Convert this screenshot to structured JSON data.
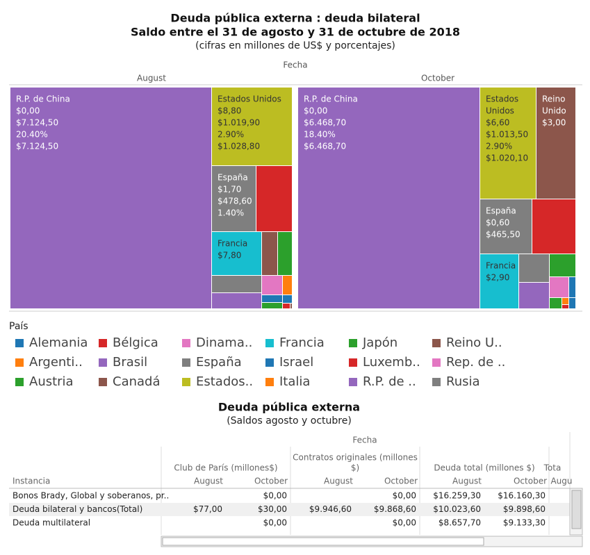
{
  "header": {
    "title": "Deuda pública externa : deuda bilateral",
    "title2": "Saldo entre el 31 de agosto y 31 de octubre de 2018",
    "subtitle": "(cifras en millones de US$ y porcentajes)"
  },
  "treemap": {
    "column_header": "Fecha",
    "panels": [
      {
        "label": "August",
        "tiles": [
          {
            "lines": [
              "R.P. de China",
              "$0,00",
              "$7.124,50",
              "20.40%",
              "$7.124,50"
            ]
          },
          {
            "lines": [
              "Estados Unidos",
              "$8,80",
              "$1.019,90",
              "2.90%",
              "$1.028,80"
            ]
          },
          {
            "lines": [
              "España",
              "$1,70",
              "$478,60",
              "1.40%"
            ]
          },
          {
            "lines": [
              "Francia",
              "$7,80"
            ]
          }
        ]
      },
      {
        "label": "October",
        "tiles": [
          {
            "lines": [
              "R.P. de China",
              "$0,00",
              "$6.468,70",
              "18.40%",
              "$6.468,70"
            ]
          },
          {
            "lines": [
              "Estados",
              "Unidos",
              "$6,60",
              "$1.013,50",
              "2.90%",
              "$1.020,10"
            ]
          },
          {
            "lines": [
              "Reino",
              "Unido",
              "$3,00"
            ]
          },
          {
            "lines": [
              "España",
              "$0,60",
              "$465,50"
            ]
          },
          {
            "lines": [
              "Francia",
              "$2,90"
            ]
          }
        ]
      }
    ]
  },
  "legend": {
    "title": "País",
    "items": [
      {
        "label": "Alemania",
        "color": "#1f77b4"
      },
      {
        "label": "Bélgica",
        "color": "#d62728"
      },
      {
        "label": "Dinama..",
        "color": "#e377c2"
      },
      {
        "label": "Francia",
        "color": "#17becf"
      },
      {
        "label": "Japón",
        "color": "#2ca02c"
      },
      {
        "label": "Reino U..",
        "color": "#8c564b"
      },
      {
        "label": "Argenti..",
        "color": "#ff7f0e"
      },
      {
        "label": "Brasil",
        "color": "#9467bd"
      },
      {
        "label": "España",
        "color": "#7f7f7f"
      },
      {
        "label": "Israel",
        "color": "#1f77b4"
      },
      {
        "label": "Luxemb..",
        "color": "#d62728"
      },
      {
        "label": "Rep. de ..",
        "color": "#e377c2"
      },
      {
        "label": "Austria",
        "color": "#2ca02c"
      },
      {
        "label": "Canadá",
        "color": "#8c564b"
      },
      {
        "label": "Estados..",
        "color": "#bcbd22"
      },
      {
        "label": "Italia",
        "color": "#ff7f0e"
      },
      {
        "label": "R.P. de ..",
        "color": "#9467bd"
      },
      {
        "label": "Rusia",
        "color": "#7f7f7f"
      }
    ]
  },
  "table": {
    "title": "Deuda pública externa",
    "subtitle": "(Saldos agosto y octubre)",
    "column_header": "Fecha",
    "row_header": "Instancia",
    "groups": [
      {
        "label_lines": [
          "Club de París (millones$)"
        ],
        "columns": [
          "August",
          "October"
        ]
      },
      {
        "label_lines": [
          "Contratos originales (millones",
          "$)"
        ],
        "columns": [
          "August",
          "October"
        ]
      },
      {
        "label_lines": [
          "Deuda total (millones $)"
        ],
        "columns": [
          "August",
          "October"
        ]
      },
      {
        "label_lines": [
          "Tota"
        ],
        "columns": [
          "Augu"
        ]
      }
    ],
    "rows": [
      {
        "label": "Bonos Brady, Global y soberanos, pr..",
        "cells": [
          null,
          "$0,00",
          null,
          "$0,00",
          "$16.259,30",
          "$16.160,30"
        ]
      },
      {
        "label": "Deuda bilateral y bancos(Total)",
        "cells": [
          "$77,00",
          "$30,00",
          "$9.946,60",
          "$9.868,60",
          "$10.023,60",
          "$9.898,60"
        ]
      },
      {
        "label": "Deuda multilateral",
        "cells": [
          null,
          "$0,00",
          null,
          "$0,00",
          "$8.657,70",
          "$9.133,30"
        ]
      }
    ]
  }
}
